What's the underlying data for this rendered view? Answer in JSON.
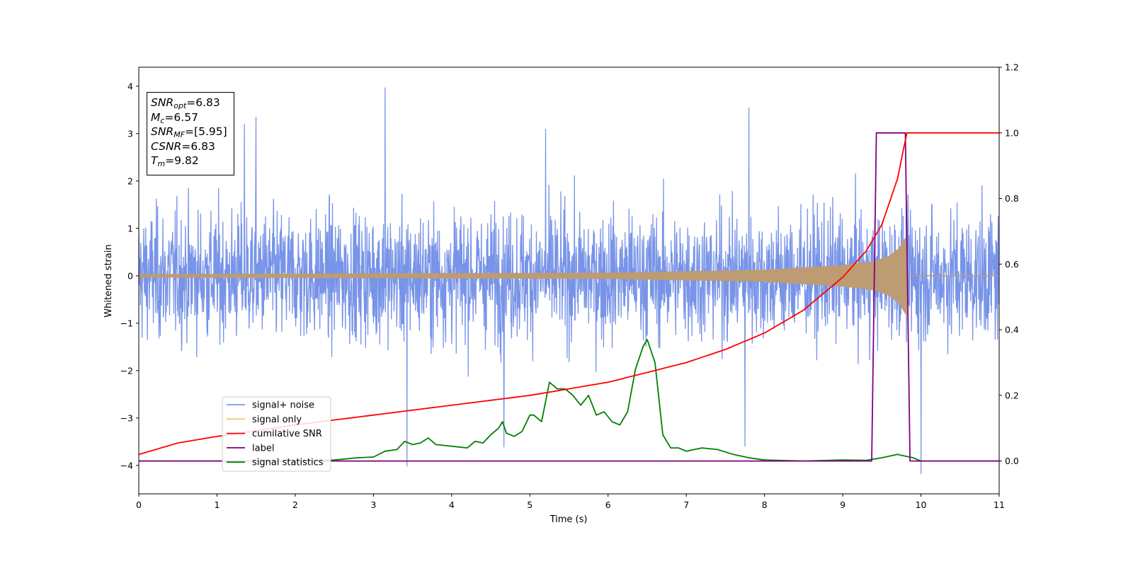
{
  "colors": {
    "signal_noise": "#7894e8",
    "signal_only": "#f7c66e",
    "overlap": "#bd9b73",
    "cumulative_snr": "#ff0000",
    "label": "#800080",
    "signal_statistics": "#008000"
  },
  "info": {
    "snr_opt": {
      "sym": "SNR",
      "sub": "opt",
      "value": "=6.83"
    },
    "mc": {
      "sym": "M",
      "sub": "c",
      "value": "=6.57"
    },
    "snr_mf": {
      "sym": "SNR",
      "sub": "MF",
      "value": "=[5.95]"
    },
    "csnr": {
      "sym": "CSNR",
      "sub": "",
      "value": "=6.83"
    },
    "tm": {
      "sym": "T",
      "sub": "m",
      "value": "=9.82"
    }
  },
  "chart_data": {
    "type": "line",
    "xlabel": "Time (s)",
    "ylabel": "Whitened strain",
    "xlim": [
      0,
      11
    ],
    "ylim_left": [
      -4.6,
      4.4
    ],
    "ylim_right": [
      -0.1,
      1.2
    ],
    "x_ticks": [
      "0",
      "1",
      "2",
      "3",
      "4",
      "5",
      "6",
      "7",
      "8",
      "9",
      "10",
      "11"
    ],
    "y_ticks_left": [
      "4",
      "3",
      "2",
      "1",
      "0",
      "−1",
      "−2",
      "−3",
      "−4"
    ],
    "y_ticks_left_values": [
      4,
      3,
      2,
      1,
      0,
      -1,
      -2,
      -3,
      -4
    ],
    "y_ticks_right": [
      "1.2",
      "1.0",
      "0.8",
      "0.6",
      "0.4",
      "0.2",
      "0.0"
    ],
    "y_ticks_right_values": [
      1.2,
      1.0,
      0.8,
      0.6,
      0.4,
      0.2,
      0.0
    ],
    "legend_position": "lower-left",
    "legend": [
      "signal+ noise",
      "signal only",
      "cumilative SNR",
      "label",
      "signal statistics"
    ],
    "series": [
      {
        "name": "signal+ noise",
        "axis": "left",
        "style": "noise",
        "x_range": [
          0,
          11
        ],
        "band": [
          -2.2,
          2.2
        ],
        "peaks": [
          {
            "x": 3.15,
            "y": 3.97
          },
          {
            "x": 3.43,
            "y": -4.02
          },
          {
            "x": 7.8,
            "y": 3.55
          },
          {
            "x": 10.0,
            "y": -4.18
          },
          {
            "x": 7.75,
            "y": -3.6
          },
          {
            "x": 4.67,
            "y": -3.62
          },
          {
            "x": 1.5,
            "y": 3.35
          },
          {
            "x": 1.35,
            "y": 3.2
          },
          {
            "x": 5.2,
            "y": 3.1
          }
        ]
      },
      {
        "name": "signal only",
        "axis": "left",
        "style": "chirp",
        "x_range": [
          0,
          9.82
        ],
        "amplitude_points": [
          [
            0,
            0.03
          ],
          [
            6,
            0.06
          ],
          [
            8,
            0.12
          ],
          [
            9.0,
            0.22
          ],
          [
            9.4,
            0.3
          ],
          [
            9.6,
            0.42
          ],
          [
            9.72,
            0.58
          ],
          [
            9.82,
            0.85
          ]
        ]
      },
      {
        "name": "cumilative SNR",
        "axis": "right",
        "points": [
          [
            0.0,
            0.02
          ],
          [
            0.5,
            0.055
          ],
          [
            1.0,
            0.075
          ],
          [
            2.0,
            0.11
          ],
          [
            3.0,
            0.14
          ],
          [
            4.0,
            0.17
          ],
          [
            5.0,
            0.2
          ],
          [
            6.0,
            0.24
          ],
          [
            7.0,
            0.3
          ],
          [
            7.5,
            0.34
          ],
          [
            8.0,
            0.39
          ],
          [
            8.5,
            0.46
          ],
          [
            9.0,
            0.56
          ],
          [
            9.3,
            0.64
          ],
          [
            9.5,
            0.72
          ],
          [
            9.7,
            0.86
          ],
          [
            9.82,
            1.0
          ],
          [
            11.0,
            1.0
          ]
        ]
      },
      {
        "name": "label",
        "axis": "right",
        "points": [
          [
            0.0,
            0.0
          ],
          [
            9.37,
            0.0
          ],
          [
            9.43,
            1.0
          ],
          [
            9.8,
            1.0
          ],
          [
            9.86,
            0.0
          ],
          [
            11.0,
            0.0
          ]
        ]
      },
      {
        "name": "signal statistics",
        "axis": "right",
        "points": [
          [
            0.0,
            0.0
          ],
          [
            1.0,
            0.0
          ],
          [
            2.0,
            0.0
          ],
          [
            2.5,
            0.003
          ],
          [
            2.8,
            0.01
          ],
          [
            3.0,
            0.012
          ],
          [
            3.15,
            0.03
          ],
          [
            3.3,
            0.035
          ],
          [
            3.4,
            0.06
          ],
          [
            3.5,
            0.05
          ],
          [
            3.6,
            0.055
          ],
          [
            3.7,
            0.07
          ],
          [
            3.8,
            0.05
          ],
          [
            4.0,
            0.045
          ],
          [
            4.2,
            0.04
          ],
          [
            4.3,
            0.06
          ],
          [
            4.4,
            0.055
          ],
          [
            4.5,
            0.08
          ],
          [
            4.6,
            0.1
          ],
          [
            4.65,
            0.12
          ],
          [
            4.7,
            0.085
          ],
          [
            4.8,
            0.075
          ],
          [
            4.9,
            0.09
          ],
          [
            5.0,
            0.14
          ],
          [
            5.05,
            0.14
          ],
          [
            5.15,
            0.12
          ],
          [
            5.25,
            0.24
          ],
          [
            5.35,
            0.22
          ],
          [
            5.45,
            0.22
          ],
          [
            5.55,
            0.2
          ],
          [
            5.65,
            0.17
          ],
          [
            5.75,
            0.2
          ],
          [
            5.85,
            0.14
          ],
          [
            5.95,
            0.15
          ],
          [
            6.05,
            0.12
          ],
          [
            6.15,
            0.11
          ],
          [
            6.25,
            0.15
          ],
          [
            6.35,
            0.28
          ],
          [
            6.45,
            0.35
          ],
          [
            6.5,
            0.37
          ],
          [
            6.6,
            0.3
          ],
          [
            6.7,
            0.08
          ],
          [
            6.8,
            0.04
          ],
          [
            6.9,
            0.04
          ],
          [
            7.0,
            0.03
          ],
          [
            7.2,
            0.04
          ],
          [
            7.4,
            0.035
          ],
          [
            7.6,
            0.02
          ],
          [
            7.8,
            0.01
          ],
          [
            8.0,
            0.003
          ],
          [
            8.5,
            0.0
          ],
          [
            9.0,
            0.003
          ],
          [
            9.3,
            0.002
          ],
          [
            9.5,
            0.01
          ],
          [
            9.7,
            0.02
          ],
          [
            9.8,
            0.015
          ],
          [
            9.9,
            0.01
          ],
          [
            10.0,
            0.0
          ],
          [
            10.5,
            0.0
          ],
          [
            11.0,
            0.0
          ]
        ]
      }
    ]
  }
}
